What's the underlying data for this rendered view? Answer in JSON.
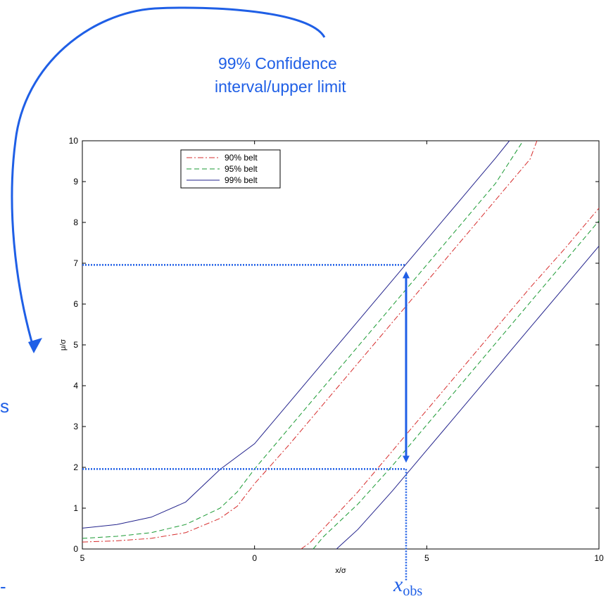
{
  "annotation": {
    "line1": "99% Confidence",
    "line2": "interval/upper limit",
    "xobs_symbol": "x",
    "xobs_subscript": "obs",
    "edge_glyph_1": "s",
    "edge_glyph_2": "-"
  },
  "colors": {
    "annotation": "#1f5fe6",
    "belt90": "#d62c2c",
    "belt95": "#1a9a33",
    "belt99": "#23238c",
    "axes": "#000000"
  },
  "chart_data": {
    "type": "line",
    "title": "",
    "xlabel": "x/σ",
    "ylabel": "μ/σ",
    "xlim": [
      -5,
      10
    ],
    "ylim": [
      0,
      10
    ],
    "xticks": [
      -5,
      0,
      5,
      10
    ],
    "xtick_labels": [
      "5",
      "0",
      "5",
      "10"
    ],
    "yticks": [
      0,
      1,
      2,
      3,
      4,
      5,
      6,
      7,
      8,
      9,
      10
    ],
    "ytick_labels": [
      "0",
      "1",
      "2",
      "3",
      "4",
      "5",
      "6",
      "7",
      "8",
      "9",
      "10"
    ],
    "grid": false,
    "legend_position": "top-left",
    "series": [
      {
        "name": "90% belt",
        "style": "dash-dot",
        "color": "#d62c2c",
        "upper": [
          [
            -5,
            0.17
          ],
          [
            -4,
            0.2
          ],
          [
            -3,
            0.26
          ],
          [
            -2,
            0.4
          ],
          [
            -1,
            0.75
          ],
          [
            -0.5,
            1.05
          ],
          [
            0,
            1.6
          ],
          [
            1,
            2.55
          ],
          [
            2,
            3.55
          ],
          [
            3,
            4.55
          ],
          [
            4,
            5.55
          ],
          [
            5,
            6.55
          ],
          [
            6,
            7.55
          ],
          [
            7,
            8.55
          ],
          [
            8,
            9.55
          ],
          [
            8.2,
            10
          ]
        ],
        "lower": [
          [
            1.35,
            0
          ],
          [
            1.6,
            0.15
          ],
          [
            2,
            0.5
          ],
          [
            3,
            1.4
          ],
          [
            4,
            2.4
          ],
          [
            5,
            3.4
          ],
          [
            6,
            4.4
          ],
          [
            7,
            5.4
          ],
          [
            8,
            6.4
          ],
          [
            9,
            7.35
          ],
          [
            10,
            8.35
          ]
        ]
      },
      {
        "name": "95% belt",
        "style": "dashed",
        "color": "#1a9a33",
        "upper": [
          [
            -5,
            0.26
          ],
          [
            -4,
            0.31
          ],
          [
            -3,
            0.4
          ],
          [
            -2,
            0.6
          ],
          [
            -1,
            1.0
          ],
          [
            -0.5,
            1.4
          ],
          [
            0,
            1.96
          ],
          [
            1,
            2.96
          ],
          [
            2,
            3.96
          ],
          [
            3,
            4.96
          ],
          [
            4,
            5.96
          ],
          [
            5,
            6.96
          ],
          [
            6,
            7.96
          ],
          [
            7,
            8.96
          ],
          [
            7.8,
            10
          ]
        ],
        "lower": [
          [
            1.7,
            0
          ],
          [
            2,
            0.3
          ],
          [
            3,
            1.1
          ],
          [
            4,
            2.04
          ],
          [
            5,
            3.04
          ],
          [
            6,
            4.04
          ],
          [
            7,
            5.04
          ],
          [
            8,
            6.04
          ],
          [
            9,
            7.04
          ],
          [
            10,
            8.04
          ]
        ]
      },
      {
        "name": "99% belt",
        "style": "solid",
        "color": "#23238c",
        "upper": [
          [
            -5,
            0.51
          ],
          [
            -4,
            0.6
          ],
          [
            -3,
            0.78
          ],
          [
            -2,
            1.15
          ],
          [
            -1,
            1.95
          ],
          [
            0,
            2.58
          ],
          [
            1,
            3.58
          ],
          [
            2,
            4.58
          ],
          [
            3,
            5.58
          ],
          [
            4,
            6.58
          ],
          [
            5,
            7.58
          ],
          [
            6,
            8.58
          ],
          [
            7,
            9.58
          ],
          [
            7.4,
            10
          ]
        ],
        "lower": [
          [
            2.38,
            0
          ],
          [
            3,
            0.48
          ],
          [
            4,
            1.42
          ],
          [
            5,
            2.42
          ],
          [
            6,
            3.42
          ],
          [
            7,
            4.42
          ],
          [
            8,
            5.42
          ],
          [
            9,
            6.42
          ],
          [
            10,
            7.42
          ]
        ]
      }
    ],
    "annotations": {
      "x_obs": 4.4,
      "upper_limit": 6.96,
      "lower_limit": 1.96
    }
  }
}
